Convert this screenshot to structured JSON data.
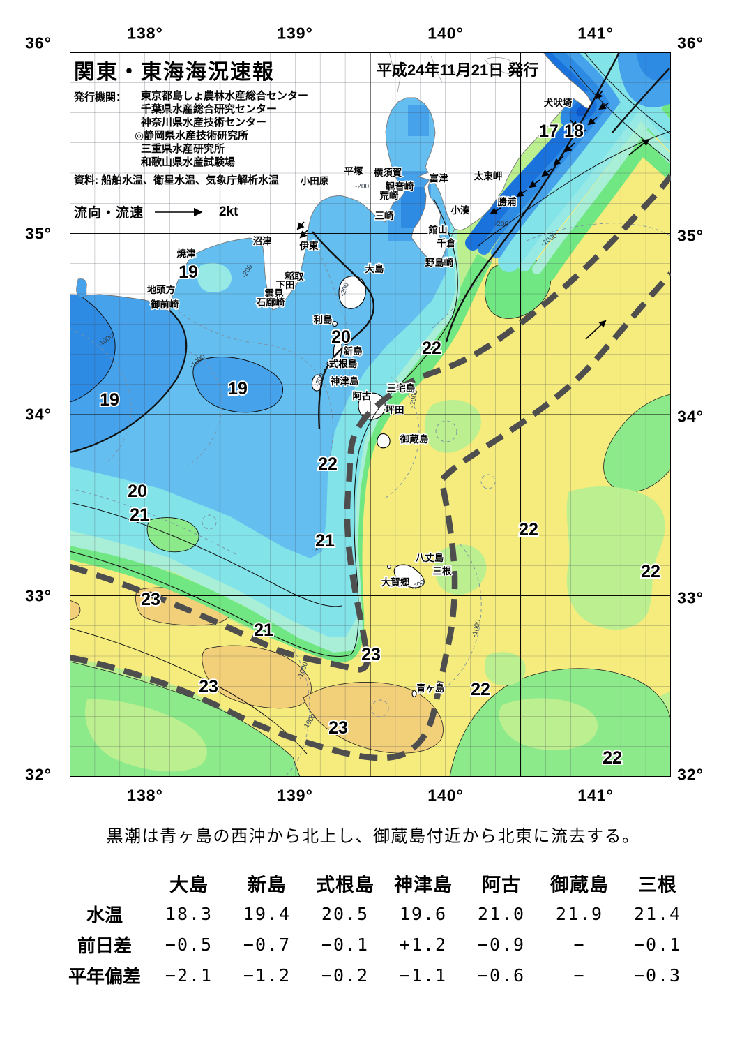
{
  "header": {
    "title": "関東・東海海況速報",
    "issued": "平成24年11月21日 発行",
    "org_label": "発行機関：",
    "orgs": [
      "東京都島しょ農林水産総合センター",
      "千葉県水産総合研究センター",
      "神奈川県水産技術センター",
      "◎静岡県水産技術研究所",
      "三重県水産研究所",
      "和歌山県水産試験場"
    ],
    "source": "資料: 船舶水温、衛星水温、気象庁解析水温",
    "flow_label": "流向・流速",
    "flow_speed": "2kt"
  },
  "axes": {
    "lons": [
      "138°",
      "139°",
      "140°",
      "141°"
    ],
    "lats": [
      "36°",
      "35°",
      "34°",
      "33°",
      "32°"
    ]
  },
  "map": {
    "temp_labels": [
      "17",
      "18",
      "19",
      "19",
      "19",
      "20",
      "20",
      "21",
      "22",
      "22",
      "21",
      "22",
      "22",
      "21",
      "23",
      "23",
      "23",
      "22",
      "23",
      "22"
    ],
    "place_labels": [
      "犬吠埼",
      "太東岬",
      "勝浦",
      "小湊",
      "館山",
      "千倉",
      "野島崎",
      "富津",
      "横須賀",
      "観音崎",
      "荒崎",
      "三崎",
      "平塚",
      "小田原",
      "沼津",
      "伊東",
      "稲取",
      "下田",
      "雲見",
      "石廊崎",
      "焼津",
      "地頭方",
      "御前崎",
      "大島",
      "利島",
      "新島",
      "式根島",
      "神津島",
      "三宅島",
      "阿古",
      "坪田",
      "御蔵島",
      "八丈島",
      "三根",
      "大賀郷",
      "青ヶ島"
    ],
    "depth_labels": [
      "-200",
      "-200",
      "-200",
      "-200",
      "-200",
      "-200",
      "-1000",
      "-1000",
      "-1000",
      "-1000",
      "-1000",
      "-1000",
      "-1000",
      "-100"
    ]
  },
  "note": "黒潮は青ヶ島の西沖から北上し、御蔵島付近から北東に流去する。",
  "table": {
    "cols": [
      "大島",
      "新島",
      "式根島",
      "神津島",
      "阿古",
      "御蔵島",
      "三根"
    ],
    "rows": [
      {
        "label": "水温",
        "vals": [
          "18.3",
          "19.4",
          "20.5",
          "19.6",
          "21.0",
          "21.9",
          "21.4"
        ]
      },
      {
        "label": "前日差",
        "vals": [
          "−0.5",
          "−0.7",
          "−0.1",
          "+1.2",
          "−0.9",
          "−",
          "−0.1"
        ]
      },
      {
        "label": "平年偏差",
        "vals": [
          "−2.1",
          "−1.2",
          "−0.2",
          "−1.1",
          "−0.6",
          "−",
          "−0.3"
        ]
      }
    ]
  },
  "colors": {
    "band_17": "#1a72dc",
    "band_18": "#2e8be4",
    "band_19": "#46a2ea",
    "band_19_20": "#64bff0",
    "band_20_21": "#82e3e9",
    "band_21": "#96e9e4",
    "band_21_22": "#a9efd7",
    "band_green": "#70e782",
    "band_22": "#8dea8b",
    "band_22_23": "#bcef8f",
    "band_yellow": "#f5ec7d",
    "band_23": "#f2cf79",
    "kuroshio": "#4e4e4e",
    "land": "#ffffff"
  }
}
